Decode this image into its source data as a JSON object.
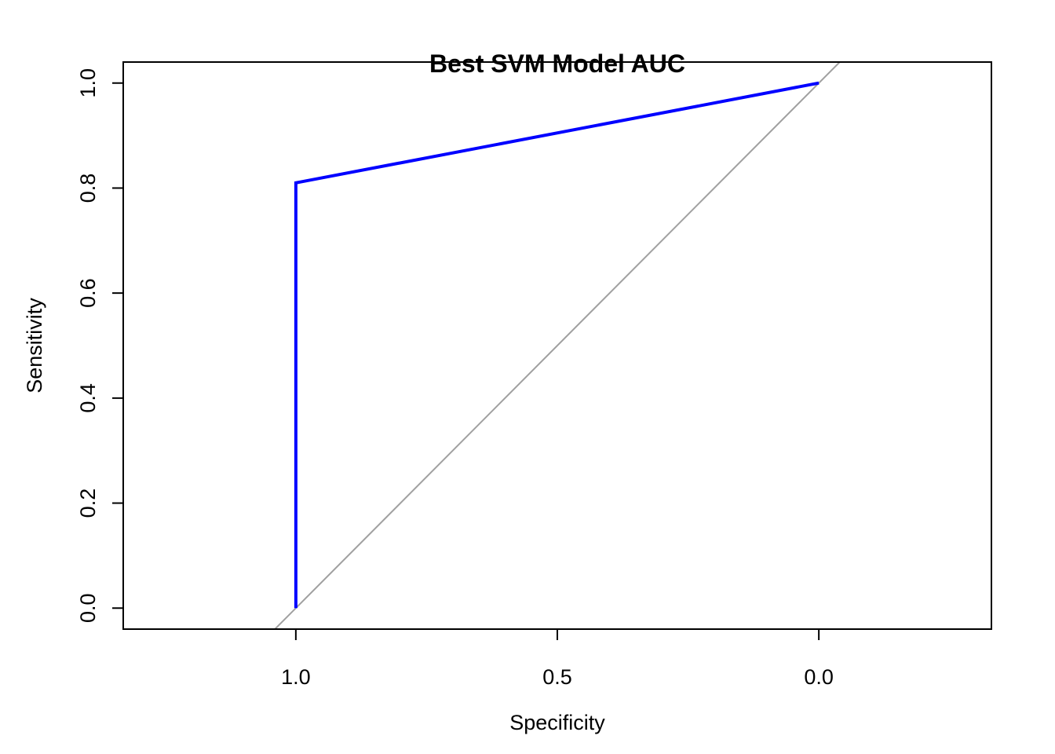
{
  "chart_data": {
    "type": "line",
    "title": "Best SVM Model AUC",
    "xlabel": "Specificity",
    "ylabel": "Sensitivity",
    "x_reversed": true,
    "xlim": [
      1.33,
      -0.33
    ],
    "ylim": [
      -0.04,
      1.04
    ],
    "grid": false,
    "x_ticks": [
      {
        "value": 1.0,
        "label": "1.0"
      },
      {
        "value": 0.5,
        "label": "0.5"
      },
      {
        "value": 0.0,
        "label": "0.0"
      }
    ],
    "y_ticks": [
      {
        "value": 0.0,
        "label": "0.0"
      },
      {
        "value": 0.2,
        "label": "0.2"
      },
      {
        "value": 0.4,
        "label": "0.4"
      },
      {
        "value": 0.6,
        "label": "0.6"
      },
      {
        "value": 0.8,
        "label": "0.8"
      },
      {
        "value": 1.0,
        "label": "1.0"
      }
    ],
    "series": [
      {
        "color": "#0000ff",
        "x": [
          1.0,
          1.0,
          1.0,
          1.0,
          0.0
        ],
        "y": [
          0.0,
          0.4,
          0.41,
          0.81,
          1.0
        ]
      }
    ],
    "reference_line": {
      "color": "#a0a0a0",
      "x": [
        1.33,
        -0.33
      ],
      "y": [
        -0.33,
        1.33
      ]
    }
  }
}
